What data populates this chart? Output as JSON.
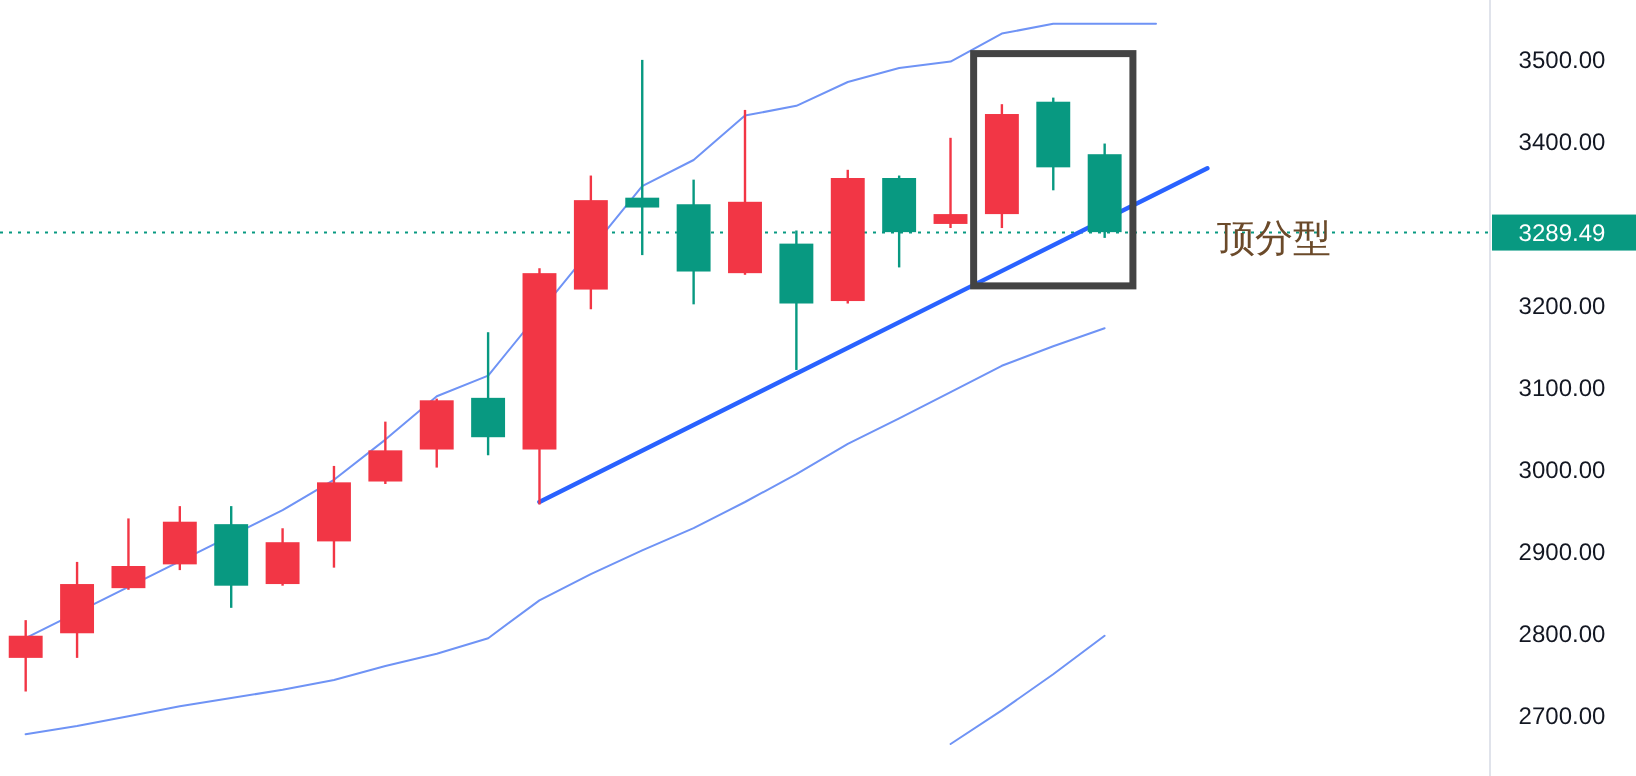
{
  "chart_data": {
    "type": "candlestick",
    "categories": [
      null,
      null,
      null,
      null,
      null,
      null,
      null,
      null,
      null,
      null,
      null,
      null,
      null,
      null,
      null,
      null,
      null,
      null,
      null,
      null,
      null,
      null,
      null,
      null,
      null,
      null,
      null,
      null,
      null
    ],
    "ohlc": [
      [
        2771,
        2817,
        2730,
        2798
      ],
      [
        2801,
        2888,
        2771,
        2861
      ],
      [
        2856,
        2941,
        2854,
        2883
      ],
      [
        2885,
        2956,
        2878,
        2937
      ],
      [
        2934,
        2956,
        2832,
        2859
      ],
      [
        2861,
        2929,
        2859,
        2912
      ],
      [
        2913,
        3005,
        2881,
        2985
      ],
      [
        2986,
        3059,
        2983,
        3024
      ],
      [
        3025,
        3087,
        3003,
        3085
      ],
      [
        3088,
        3168,
        3018,
        3040
      ],
      [
        3025,
        3246,
        2958,
        3240
      ],
      [
        3220,
        3359,
        3196,
        3329
      ],
      [
        3332,
        3500,
        3262,
        3320
      ],
      [
        3324,
        3354,
        3202,
        3242
      ],
      [
        3240,
        3439,
        3238,
        3327
      ],
      [
        3276,
        3292,
        3122,
        3203
      ],
      [
        3206,
        3366,
        3203,
        3356
      ],
      [
        3356,
        3359,
        3247,
        3290
      ],
      [
        3300,
        3405,
        3295,
        3312
      ],
      [
        3312,
        3446,
        3295,
        3434
      ],
      [
        3449,
        3454,
        3341,
        3369
      ],
      [
        3385,
        3398,
        3283,
        3290
      ],
      null,
      null,
      null,
      null,
      null,
      null,
      null
    ],
    "colors": [
      "#f23645",
      "#f23645",
      "#f23645",
      "#f23645",
      "#089981",
      "#f23645",
      "#f23645",
      "#f23645",
      "#f23645",
      "#089981",
      "#f23645",
      "#f23645",
      "#089981",
      "#089981",
      "#f23645",
      "#089981",
      "#f23645",
      "#089981",
      "#f23645",
      "#f23645",
      "#089981",
      "#089981",
      null,
      null,
      null,
      null,
      null,
      null,
      null
    ],
    "series": [
      {
        "type": "line",
        "color": "#6f93f5",
        "values": [
          2795,
          null,
          null,
          null,
          null,
          2951,
          2988,
          3037,
          3090,
          3115,
          null,
          null,
          3346,
          3378,
          3432,
          3444,
          3473,
          3490,
          3498,
          3532,
          3544,
          3544,
          3544,
          null,
          null,
          null,
          null,
          null,
          null
        ]
      },
      {
        "type": "line",
        "color": "#6f93f5",
        "values": [
          2678,
          2688,
          2700,
          2712,
          2722,
          2732,
          2744,
          2761,
          2776,
          2795,
          2841,
          2873,
          2902,
          2929,
          2961,
          2995,
          3032,
          3063,
          3095,
          3127,
          3151,
          3173,
          null,
          null,
          null,
          null,
          null,
          null,
          null
        ]
      },
      {
        "type": "line",
        "color": "#6f93f5",
        "values": [
          null,
          null,
          null,
          null,
          null,
          null,
          null,
          null,
          null,
          null,
          null,
          null,
          null,
          null,
          null,
          null,
          null,
          null,
          2666,
          2707,
          2751,
          2798,
          null,
          null,
          null,
          null,
          null,
          null,
          null
        ]
      },
      {
        "type": "line",
        "color": "#2962ff",
        "values": [
          null,
          null,
          null,
          null,
          null,
          null,
          null,
          null,
          null,
          null,
          2961,
          null,
          null,
          null,
          null,
          null,
          null,
          null,
          null,
          null,
          null,
          null,
          null,
          3368,
          null,
          null,
          null,
          null,
          null
        ]
      }
    ],
    "ylim": [
      2627,
      3573
    ],
    "yticks": [
      {
        "value": 2700,
        "label": "2700.00"
      },
      {
        "value": 2800,
        "label": "2800.00"
      },
      {
        "value": 2900,
        "label": "2900.00"
      },
      {
        "value": 3000,
        "label": "3000.00"
      },
      {
        "value": 3100,
        "label": "3100.00"
      },
      {
        "value": 3200,
        "label": "3200.00"
      },
      {
        "value": 3400,
        "label": "3400.00"
      },
      {
        "value": 3500,
        "label": "3500.00"
      }
    ],
    "tick_labels": "y",
    "ref_lines": [
      {
        "axis": "y",
        "value": 3289.49,
        "label": "3289.49",
        "color": "#089981",
        "line_style": "dotted"
      }
    ],
    "annotations": [
      "顶分型"
    ],
    "grid": false
  }
}
